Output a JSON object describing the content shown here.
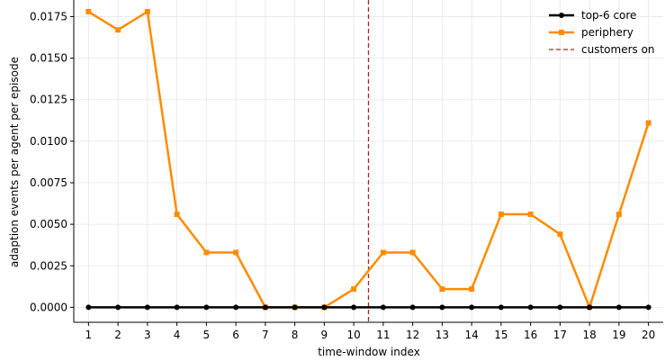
{
  "chart_data": {
    "type": "line",
    "title": "",
    "xlabel": "time-window index",
    "ylabel": "adaption events per agent per episode",
    "x": [
      1,
      2,
      3,
      4,
      5,
      6,
      7,
      8,
      9,
      10,
      11,
      12,
      13,
      14,
      15,
      16,
      17,
      18,
      19,
      20
    ],
    "xlim": [
      0.5,
      20.5
    ],
    "ylim": [
      -0.0009,
      0.0185
    ],
    "yticks": [
      "0.0000",
      "0.0025",
      "0.0050",
      "0.0075",
      "0.0100",
      "0.0125",
      "0.0150",
      "0.0175"
    ],
    "ytick_values": [
      0,
      0.0025,
      0.005,
      0.0075,
      0.01,
      0.0125,
      0.015,
      0.0175
    ],
    "grid": true,
    "legend_position": "top-right",
    "series": [
      {
        "name": "top-6 core",
        "color": "#000000",
        "marker": "circle",
        "values": [
          0,
          0,
          0,
          0,
          0,
          0,
          0,
          0,
          0,
          0,
          0,
          0,
          0,
          0,
          0,
          0,
          0,
          0,
          0,
          0
        ]
      },
      {
        "name": "periphery",
        "color": "#ff8c00",
        "marker": "square",
        "values": [
          0.0178,
          0.0167,
          0.0178,
          0.0056,
          0.0033,
          0.0033,
          0,
          0,
          0,
          0.0011,
          0.0033,
          0.0033,
          0.0011,
          0.0011,
          0.0056,
          0.0056,
          0.0044,
          0,
          0.0056,
          0.0111
        ]
      }
    ],
    "vline": {
      "name": "customers on",
      "x": 10.5,
      "color": "#b22222",
      "style": "dashed"
    }
  }
}
